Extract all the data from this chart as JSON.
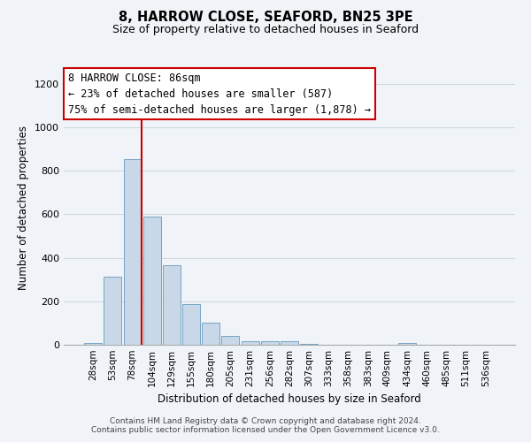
{
  "title": "8, HARROW CLOSE, SEAFORD, BN25 3PE",
  "subtitle": "Size of property relative to detached houses in Seaford",
  "xlabel": "Distribution of detached houses by size in Seaford",
  "ylabel": "Number of detached properties",
  "bar_color": "#c8d8e8",
  "bar_edge_color": "#6699bb",
  "bin_labels": [
    "28sqm",
    "53sqm",
    "78sqm",
    "104sqm",
    "129sqm",
    "155sqm",
    "180sqm",
    "205sqm",
    "231sqm",
    "256sqm",
    "282sqm",
    "307sqm",
    "333sqm",
    "358sqm",
    "383sqm",
    "409sqm",
    "434sqm",
    "460sqm",
    "485sqm",
    "511sqm",
    "536sqm"
  ],
  "bar_heights": [
    10,
    315,
    855,
    590,
    365,
    185,
    100,
    42,
    18,
    18,
    18,
    3,
    0,
    0,
    0,
    0,
    10,
    0,
    0,
    0,
    0
  ],
  "vline_x_index": 2,
  "vline_color": "#cc0000",
  "ylim": [
    0,
    1260
  ],
  "yticks": [
    0,
    200,
    400,
    600,
    800,
    1000,
    1200
  ],
  "annotation_text": "8 HARROW CLOSE: 86sqm\n← 23% of detached houses are smaller (587)\n75% of semi-detached houses are larger (1,878) →",
  "annotation_box_color": "#ffffff",
  "annotation_box_edge_color": "#cc0000",
  "footer1": "Contains HM Land Registry data © Crown copyright and database right 2024.",
  "footer2": "Contains public sector information licensed under the Open Government Licence v3.0.",
  "bg_color": "#f0f4f8",
  "grid_color": "#ccd6e0"
}
